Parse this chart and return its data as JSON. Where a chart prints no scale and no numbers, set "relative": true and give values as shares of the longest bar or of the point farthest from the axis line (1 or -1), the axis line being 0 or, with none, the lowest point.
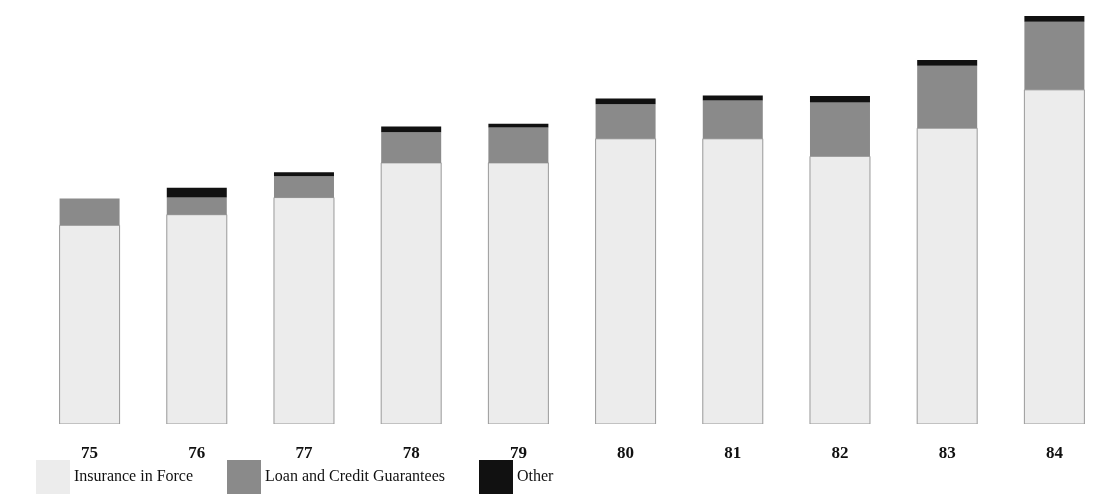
{
  "chart_data": {
    "type": "bar",
    "stacked": true,
    "relative": true,
    "categories": [
      "75",
      "76",
      "77",
      "78",
      "79",
      "80",
      "81",
      "82",
      "83",
      "84"
    ],
    "series": [
      {
        "name": "Insurance in Force",
        "color": "#ececec",
        "values": [
          0.487,
          0.513,
          0.555,
          0.64,
          0.64,
          0.699,
          0.699,
          0.656,
          0.725,
          0.819
        ]
      },
      {
        "name": "Loan and Credit Guarantees",
        "color": "#8a8a8a",
        "values": [
          0.066,
          0.042,
          0.052,
          0.075,
          0.087,
          0.085,
          0.094,
          0.132,
          0.153,
          0.167
        ]
      },
      {
        "name": "Other",
        "color": "#111111",
        "values": [
          0,
          0.024,
          0.01,
          0.014,
          0.009,
          0.014,
          0.012,
          0.016,
          0.014,
          0.014
        ]
      }
    ],
    "legend": "bottom left",
    "grid": false
  }
}
